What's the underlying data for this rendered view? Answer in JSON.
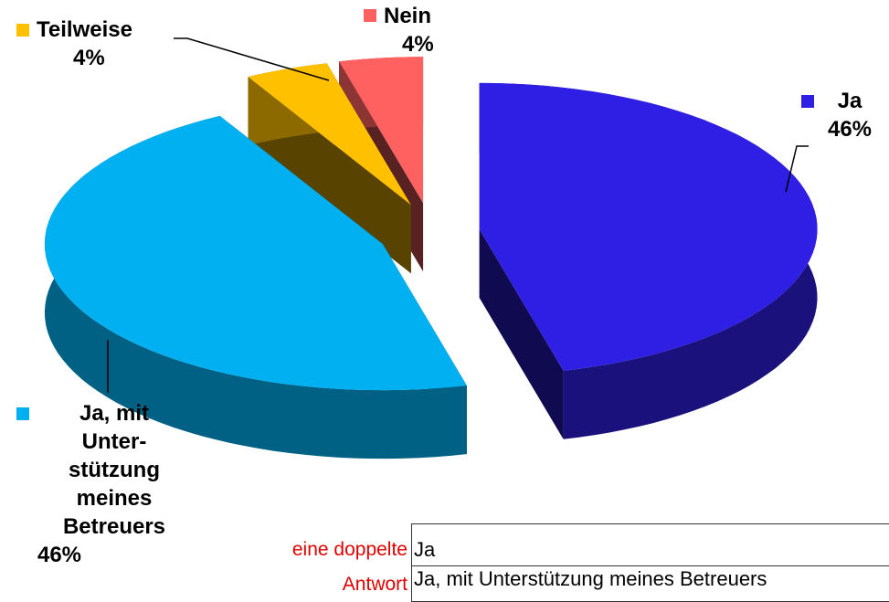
{
  "chart_data": {
    "type": "pie",
    "categories": [
      "Ja",
      "Ja, mit Unter­stützung meines Betreuers",
      "Teilweise",
      "Nein"
    ],
    "values": [
      46,
      46,
      4,
      4
    ],
    "value_labels": [
      "46%",
      "46%",
      "4%",
      "4%"
    ],
    "colors": [
      "#2f1fe4",
      "#00b0f0",
      "#ffc000",
      "#ff6161"
    ]
  },
  "note": [
    "eine doppelte",
    "Antwort"
  ],
  "table": {
    "rows": [
      "Ja",
      "Ja, mit Unterstützung meines Betreuers"
    ]
  }
}
